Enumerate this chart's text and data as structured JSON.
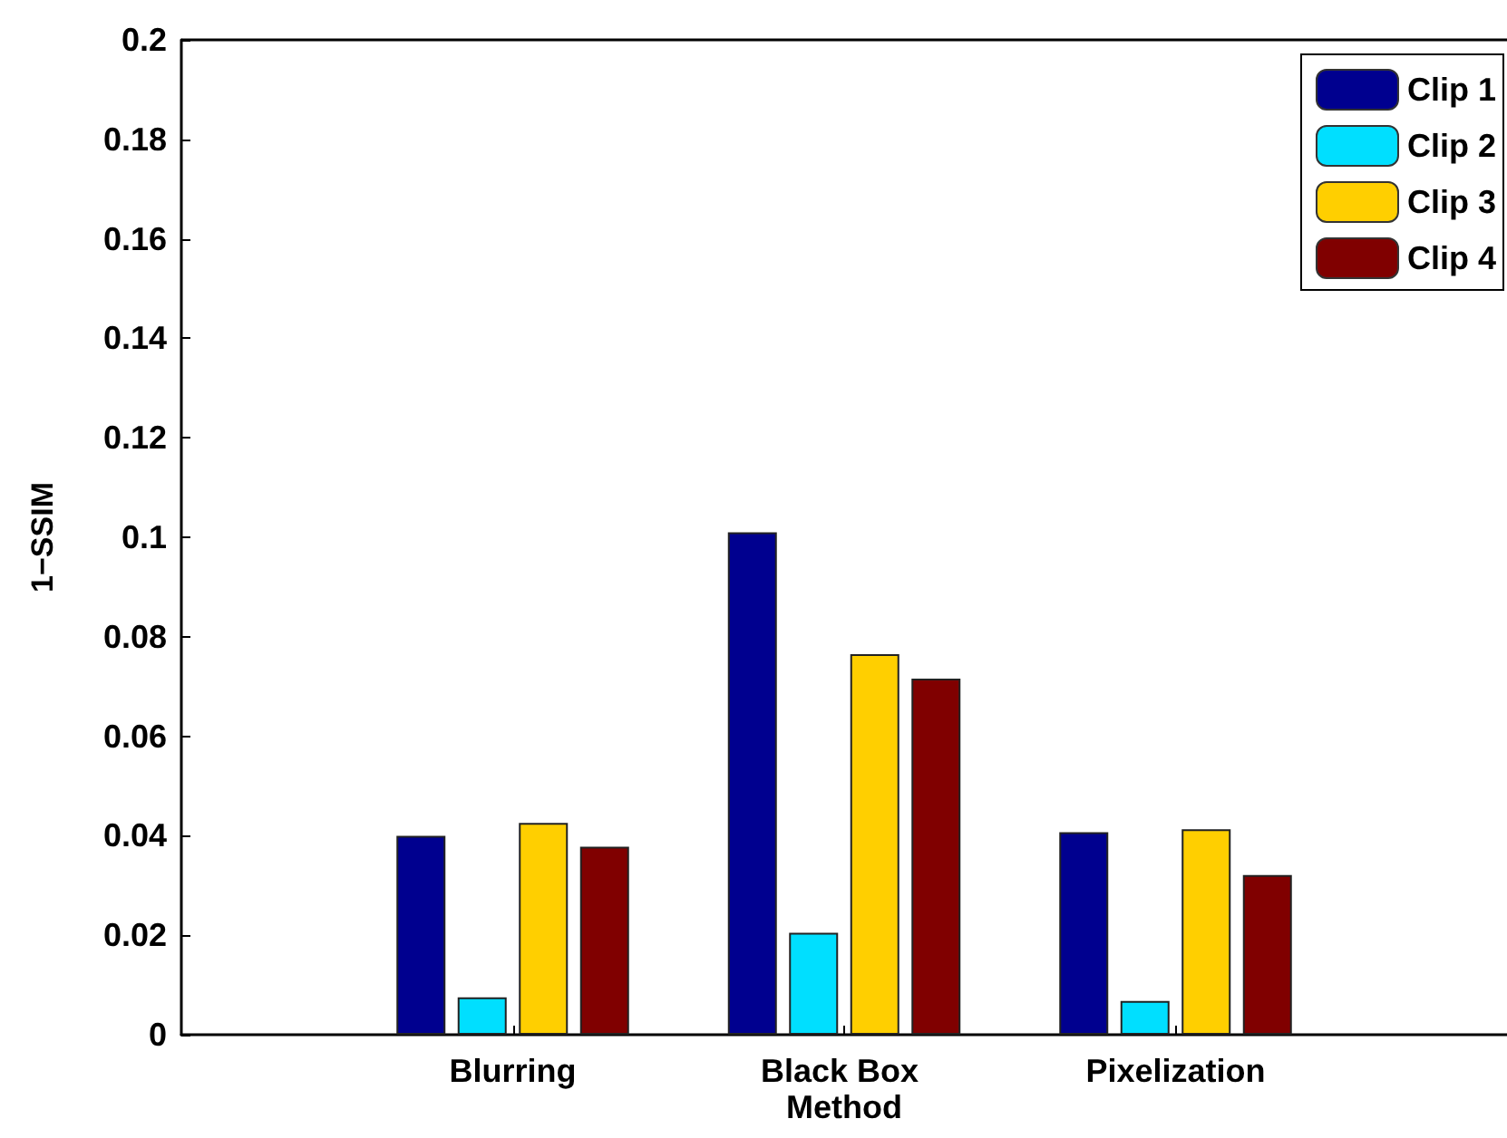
{
  "chart_data": {
    "type": "bar",
    "ylabel": "1−SSIM",
    "categories": [
      "Blurring",
      "Black Box Method",
      "Pixelization"
    ],
    "series": [
      {
        "name": "Clip 1",
        "color": "#00008f",
        "values": [
          0.04,
          0.101,
          0.0407
        ]
      },
      {
        "name": "Clip 2",
        "color": "#00dfff",
        "values": [
          0.0075,
          0.0205,
          0.0068
        ]
      },
      {
        "name": "Clip 3",
        "color": "#ffcf00",
        "values": [
          0.0426,
          0.0765,
          0.0413
        ]
      },
      {
        "name": "Clip 4",
        "color": "#800000",
        "values": [
          0.0378,
          0.0716,
          0.0321
        ]
      }
    ],
    "ylim": [
      0,
      0.2
    ],
    "yticks": [
      0,
      0.02,
      0.04,
      0.06,
      0.08,
      0.1,
      0.12,
      0.14,
      0.16,
      0.18,
      0.2
    ],
    "grid": false,
    "legend": "top right"
  }
}
